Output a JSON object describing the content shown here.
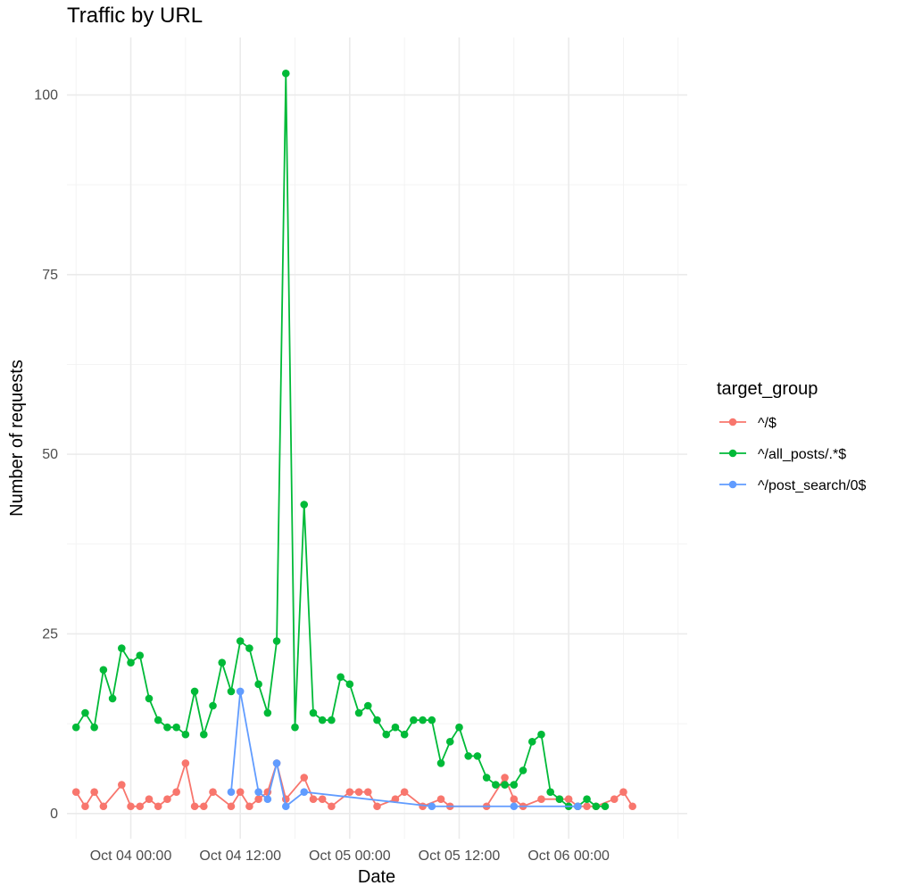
{
  "chart_data": {
    "type": "line",
    "title": "Traffic by URL",
    "xlabel": "Date",
    "ylabel": "Number of requests",
    "x_ticks": [
      "Oct 04 00:00",
      "Oct 04 12:00",
      "Oct 05 00:00",
      "Oct 05 12:00",
      "Oct 06 00:00"
    ],
    "y_ticks": [
      0,
      25,
      50,
      75,
      100
    ],
    "xlim": [
      "2023-10-03T17:00",
      "2023-10-06T13:00"
    ],
    "ylim": [
      -3.5,
      108
    ],
    "grid": true,
    "legend": {
      "title": "target_group",
      "position": "right"
    },
    "series": [
      {
        "name": "^/$",
        "color": "#F8766D",
        "points": [
          [
            "2023-10-03T18:00",
            3
          ],
          [
            "2023-10-03T19:00",
            1
          ],
          [
            "2023-10-03T20:00",
            3
          ],
          [
            "2023-10-03T21:00",
            1
          ],
          [
            "2023-10-03T23:00",
            4
          ],
          [
            "2023-10-04T00:00",
            1
          ],
          [
            "2023-10-04T01:00",
            1
          ],
          [
            "2023-10-04T02:00",
            2
          ],
          [
            "2023-10-04T03:00",
            1
          ],
          [
            "2023-10-04T04:00",
            2
          ],
          [
            "2023-10-04T05:00",
            3
          ],
          [
            "2023-10-04T06:00",
            7
          ],
          [
            "2023-10-04T07:00",
            1
          ],
          [
            "2023-10-04T08:00",
            1
          ],
          [
            "2023-10-04T09:00",
            3
          ],
          [
            "2023-10-04T11:00",
            1
          ],
          [
            "2023-10-04T12:00",
            3
          ],
          [
            "2023-10-04T13:00",
            1
          ],
          [
            "2023-10-04T14:00",
            2
          ],
          [
            "2023-10-04T15:00",
            3
          ],
          [
            "2023-10-04T16:00",
            7
          ],
          [
            "2023-10-04T17:00",
            2
          ],
          [
            "2023-10-04T19:00",
            5
          ],
          [
            "2023-10-04T20:00",
            2
          ],
          [
            "2023-10-04T21:00",
            2
          ],
          [
            "2023-10-04T22:00",
            1
          ],
          [
            "2023-10-05T00:00",
            3
          ],
          [
            "2023-10-05T01:00",
            3
          ],
          [
            "2023-10-05T02:00",
            3
          ],
          [
            "2023-10-05T03:00",
            1
          ],
          [
            "2023-10-05T05:00",
            2
          ],
          [
            "2023-10-05T06:00",
            3
          ],
          [
            "2023-10-05T08:00",
            1
          ],
          [
            "2023-10-05T10:00",
            2
          ],
          [
            "2023-10-05T11:00",
            1
          ],
          [
            "2023-10-05T15:00",
            1
          ],
          [
            "2023-10-05T17:00",
            5
          ],
          [
            "2023-10-05T18:00",
            2
          ],
          [
            "2023-10-05T19:00",
            1
          ],
          [
            "2023-10-05T21:00",
            2
          ],
          [
            "2023-10-05T23:00",
            2
          ],
          [
            "2023-10-06T00:00",
            2
          ],
          [
            "2023-10-06T01:00",
            1
          ],
          [
            "2023-10-06T02:00",
            1
          ],
          [
            "2023-10-06T03:00",
            1
          ],
          [
            "2023-10-06T05:00",
            2
          ],
          [
            "2023-10-06T06:00",
            3
          ],
          [
            "2023-10-06T07:00",
            1
          ]
        ]
      },
      {
        "name": "^/all_posts/.*$",
        "color": "#00BA38",
        "points": [
          [
            "2023-10-03T18:00",
            12
          ],
          [
            "2023-10-03T19:00",
            14
          ],
          [
            "2023-10-03T20:00",
            12
          ],
          [
            "2023-10-03T21:00",
            20
          ],
          [
            "2023-10-03T22:00",
            16
          ],
          [
            "2023-10-03T23:00",
            23
          ],
          [
            "2023-10-04T00:00",
            21
          ],
          [
            "2023-10-04T01:00",
            22
          ],
          [
            "2023-10-04T02:00",
            16
          ],
          [
            "2023-10-04T03:00",
            13
          ],
          [
            "2023-10-04T04:00",
            12
          ],
          [
            "2023-10-04T05:00",
            12
          ],
          [
            "2023-10-04T06:00",
            11
          ],
          [
            "2023-10-04T07:00",
            17
          ],
          [
            "2023-10-04T08:00",
            11
          ],
          [
            "2023-10-04T09:00",
            15
          ],
          [
            "2023-10-04T10:00",
            21
          ],
          [
            "2023-10-04T11:00",
            17
          ],
          [
            "2023-10-04T12:00",
            24
          ],
          [
            "2023-10-04T13:00",
            23
          ],
          [
            "2023-10-04T14:00",
            18
          ],
          [
            "2023-10-04T15:00",
            14
          ],
          [
            "2023-10-04T16:00",
            24
          ],
          [
            "2023-10-04T17:00",
            103
          ],
          [
            "2023-10-04T18:00",
            12
          ],
          [
            "2023-10-04T19:00",
            43
          ],
          [
            "2023-10-04T20:00",
            14
          ],
          [
            "2023-10-04T21:00",
            13
          ],
          [
            "2023-10-04T22:00",
            13
          ],
          [
            "2023-10-04T23:00",
            19
          ],
          [
            "2023-10-05T00:00",
            18
          ],
          [
            "2023-10-05T01:00",
            14
          ],
          [
            "2023-10-05T02:00",
            15
          ],
          [
            "2023-10-05T03:00",
            13
          ],
          [
            "2023-10-05T04:00",
            11
          ],
          [
            "2023-10-05T05:00",
            12
          ],
          [
            "2023-10-05T06:00",
            11
          ],
          [
            "2023-10-05T07:00",
            13
          ],
          [
            "2023-10-05T08:00",
            13
          ],
          [
            "2023-10-05T09:00",
            13
          ],
          [
            "2023-10-05T10:00",
            7
          ],
          [
            "2023-10-05T11:00",
            10
          ],
          [
            "2023-10-05T12:00",
            12
          ],
          [
            "2023-10-05T13:00",
            8
          ],
          [
            "2023-10-05T14:00",
            8
          ],
          [
            "2023-10-05T15:00",
            5
          ],
          [
            "2023-10-05T16:00",
            4
          ],
          [
            "2023-10-05T17:00",
            4
          ],
          [
            "2023-10-05T18:00",
            4
          ],
          [
            "2023-10-05T19:00",
            6
          ],
          [
            "2023-10-05T20:00",
            10
          ],
          [
            "2023-10-05T21:00",
            11
          ],
          [
            "2023-10-05T22:00",
            3
          ],
          [
            "2023-10-05T23:00",
            2
          ],
          [
            "2023-10-06T00:00",
            1
          ],
          [
            "2023-10-06T01:00",
            1
          ],
          [
            "2023-10-06T02:00",
            2
          ],
          [
            "2023-10-06T03:00",
            1
          ],
          [
            "2023-10-06T04:00",
            1
          ]
        ]
      },
      {
        "name": "^/post_search/0$",
        "color": "#619CFF",
        "points": [
          [
            "2023-10-04T11:00",
            3
          ],
          [
            "2023-10-04T12:00",
            17
          ],
          [
            "2023-10-04T14:00",
            3
          ],
          [
            "2023-10-04T15:00",
            2
          ],
          [
            "2023-10-04T16:00",
            7
          ],
          [
            "2023-10-04T17:00",
            1
          ],
          [
            "2023-10-04T19:00",
            3
          ],
          [
            "2023-10-05T09:00",
            1
          ],
          [
            "2023-10-05T18:00",
            1
          ],
          [
            "2023-10-06T01:00",
            1
          ]
        ]
      }
    ]
  }
}
